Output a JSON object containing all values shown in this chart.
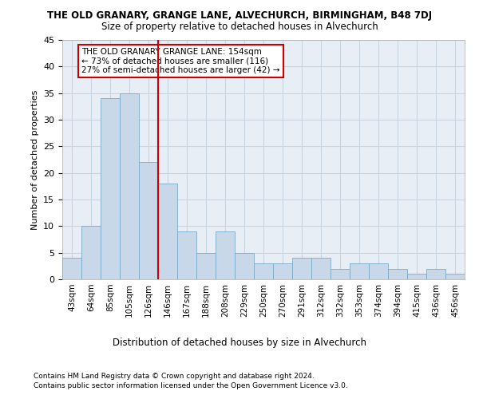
{
  "title_line1": "THE OLD GRANARY, GRANGE LANE, ALVECHURCH, BIRMINGHAM, B48 7DJ",
  "title_line2": "Size of property relative to detached houses in Alvechurch",
  "xlabel": "Distribution of detached houses by size in Alvechurch",
  "ylabel": "Number of detached properties",
  "categories": [
    "43sqm",
    "64sqm",
    "85sqm",
    "105sqm",
    "126sqm",
    "146sqm",
    "167sqm",
    "188sqm",
    "208sqm",
    "229sqm",
    "250sqm",
    "270sqm",
    "291sqm",
    "312sqm",
    "332sqm",
    "353sqm",
    "374sqm",
    "394sqm",
    "415sqm",
    "436sqm",
    "456sqm"
  ],
  "values": [
    4,
    10,
    34,
    35,
    22,
    18,
    9,
    5,
    9,
    5,
    3,
    3,
    4,
    4,
    2,
    3,
    3,
    2,
    1,
    2,
    1
  ],
  "bar_color": "#c8d8e8",
  "bar_edge_color": "#7aaac8",
  "vline_color": "#cc0000",
  "annotation_text": "THE OLD GRANARY GRANGE LANE: 154sqm\n← 73% of detached houses are smaller (116)\n27% of semi-detached houses are larger (42) →",
  "annotation_box_color": "white",
  "annotation_box_edge_color": "#cc0000",
  "ylim": [
    0,
    45
  ],
  "yticks": [
    0,
    5,
    10,
    15,
    20,
    25,
    30,
    35,
    40,
    45
  ],
  "grid_color": "#c8d4e0",
  "bg_color": "#e8eef5",
  "footer_line1": "Contains HM Land Registry data © Crown copyright and database right 2024.",
  "footer_line2": "Contains public sector information licensed under the Open Government Licence v3.0."
}
